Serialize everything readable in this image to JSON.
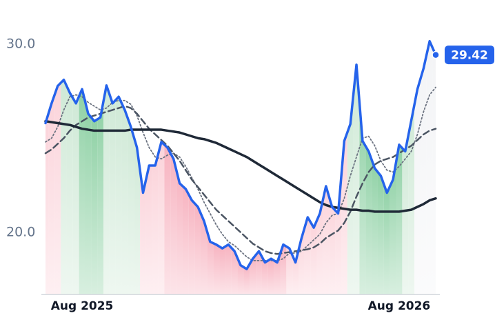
{
  "chart_data": {
    "type": "line",
    "categories": [
      null,
      null,
      null,
      null,
      null,
      null,
      "Aug 2025",
      null,
      null,
      null,
      null,
      null,
      null,
      null,
      null,
      null,
      null,
      null,
      null,
      null,
      null,
      null,
      null,
      null,
      null,
      null,
      null,
      null,
      null,
      null,
      null,
      null,
      null,
      null,
      null,
      null,
      null,
      null,
      null,
      null,
      null,
      null,
      null,
      null,
      null,
      null,
      null,
      null,
      null,
      null,
      null,
      null,
      null,
      null,
      null,
      null,
      null,
      null,
      "Aug 2026",
      null,
      null,
      null,
      null,
      null,
      null
    ],
    "series": [
      {
        "color": "#2563eb",
        "style": "solid",
        "width": 3.5,
        "values": [
          25.8,
          26.85,
          27.77,
          28.1,
          27.4,
          26.85,
          27.6,
          26.3,
          25.9,
          26.1,
          27.8,
          26.85,
          27.2,
          26.5,
          25.6,
          24.5,
          22.1,
          23.55,
          23.55,
          24.8,
          24.5,
          23.9,
          22.6,
          22.3,
          21.7,
          21.35,
          20.6,
          19.5,
          19.35,
          19.15,
          19.35,
          19.0,
          18.25,
          18.05,
          18.6,
          19.0,
          18.4,
          18.6,
          18.4,
          19.35,
          19.15,
          18.4,
          19.7,
          20.8,
          20.25,
          21.0,
          22.45,
          21.35,
          21.0,
          24.85,
          25.75,
          28.9,
          24.85,
          24.3,
          23.4,
          23.0,
          22.1,
          22.8,
          24.65,
          24.3,
          25.95,
          27.6,
          28.7,
          30.15,
          29.42
        ]
      },
      {
        "color": "#6b7280",
        "style": "dotted",
        "width": 1.8,
        "values": [
          24.8,
          25.0,
          25.6,
          26.5,
          27.2,
          27.3,
          27.2,
          26.9,
          26.7,
          26.5,
          26.6,
          26.9,
          27.0,
          27.0,
          26.8,
          26.2,
          25.3,
          24.5,
          24.0,
          23.9,
          24.1,
          24.2,
          24.0,
          23.5,
          22.9,
          22.3,
          21.6,
          21.0,
          20.4,
          19.9,
          19.5,
          19.3,
          19.0,
          18.7,
          18.5,
          18.5,
          18.5,
          18.5,
          18.5,
          18.6,
          18.9,
          18.9,
          19.0,
          19.3,
          19.6,
          19.9,
          20.5,
          20.9,
          21.0,
          21.8,
          23.0,
          24.0,
          25.0,
          25.1,
          24.6,
          23.8,
          23.3,
          23.2,
          23.5,
          23.9,
          24.3,
          25.2,
          26.4,
          27.3,
          27.7
        ]
      },
      {
        "color": "#4b5563",
        "style": "dashed",
        "width": 2.5,
        "values": [
          24.2,
          24.4,
          24.7,
          25.0,
          25.4,
          25.7,
          25.9,
          26.1,
          26.2,
          26.3,
          26.4,
          26.5,
          26.6,
          26.7,
          26.6,
          26.3,
          25.9,
          25.5,
          25.2,
          24.9,
          24.6,
          24.2,
          23.8,
          23.3,
          22.8,
          22.4,
          22.0,
          21.6,
          21.2,
          20.9,
          20.6,
          20.3,
          20.0,
          19.7,
          19.4,
          19.2,
          19.0,
          18.9,
          18.85,
          18.9,
          18.95,
          19.0,
          19.05,
          19.1,
          19.2,
          19.4,
          19.7,
          19.9,
          20.1,
          20.5,
          21.1,
          21.9,
          22.6,
          23.2,
          23.6,
          23.8,
          23.9,
          24.0,
          24.2,
          24.4,
          24.6,
          24.9,
          25.2,
          25.4,
          25.5
        ]
      },
      {
        "color": "#1f2937",
        "style": "solid",
        "width": 3.5,
        "values": [
          25.9,
          25.85,
          25.8,
          25.75,
          25.7,
          25.6,
          25.5,
          25.45,
          25.4,
          25.4,
          25.4,
          25.4,
          25.4,
          25.4,
          25.45,
          25.45,
          25.45,
          25.45,
          25.45,
          25.45,
          25.4,
          25.35,
          25.3,
          25.2,
          25.1,
          25.0,
          24.95,
          24.85,
          24.75,
          24.6,
          24.45,
          24.3,
          24.15,
          24.0,
          23.8,
          23.6,
          23.4,
          23.2,
          23.0,
          22.8,
          22.6,
          22.4,
          22.2,
          22.0,
          21.8,
          21.6,
          21.45,
          21.35,
          21.3,
          21.25,
          21.2,
          21.2,
          21.15,
          21.15,
          21.1,
          21.1,
          21.1,
          21.1,
          21.1,
          21.15,
          21.2,
          21.35,
          21.5,
          21.7,
          21.8
        ]
      }
    ],
    "area_colors": [
      "#fbd3da",
      "#fbd3da",
      "#fbd3da",
      "#cfe9d6",
      "#cfe9d6",
      "#cfe9d6",
      "#8fd1a5",
      "#8fd1a5",
      "#8fd1a5",
      "#8fd1a5",
      "#cfe9d6",
      "#cfe9d6",
      "#cfe9d6",
      "#cfe9d6",
      "#cfe9d6",
      "#cfe9d6",
      "#fbd3da",
      "#fbd3da",
      "#fbd3da",
      "#fbd3da",
      "#f7b3c0",
      "#f7b3c0",
      "#f7b3c0",
      "#f7b3c0",
      "#f7b3c0",
      "#f7b3c0",
      "#f7b3c0",
      "#f7b3c0",
      "#f7b3c0",
      "#f7b3c0",
      "#f7b3c0",
      "#f7b3c0",
      "#f7b3c0",
      "#f7b3c0",
      "#f7b3c0",
      "#f7b3c0",
      "#f7b3c0",
      "#f7b3c0",
      "#f7b3c0",
      "#f7b3c0",
      "#fbd3da",
      "#fbd3da",
      "#fbd3da",
      "#fbd3da",
      "#fbd3da",
      "#fbd3da",
      "#fbd3da",
      "#fbd3da",
      "#fbd3da",
      "#fbd3da",
      "#cfe9d6",
      "#cfe9d6",
      "#8fd1a5",
      "#8fd1a5",
      "#8fd1a5",
      "#8fd1a5",
      "#8fd1a5",
      "#8fd1a5",
      "#8fd1a5",
      "#cfe9d6",
      "#cfe9d6",
      "#f3f4f6",
      "#f3f4f6",
      "#f3f4f6",
      "#f3f4f6"
    ],
    "ylim": [
      16.7,
      32.3
    ],
    "yticks": [
      {
        "value": 20,
        "label": "20.0"
      },
      {
        "value": 30,
        "label": "30.0"
      }
    ],
    "grid": false
  }
}
